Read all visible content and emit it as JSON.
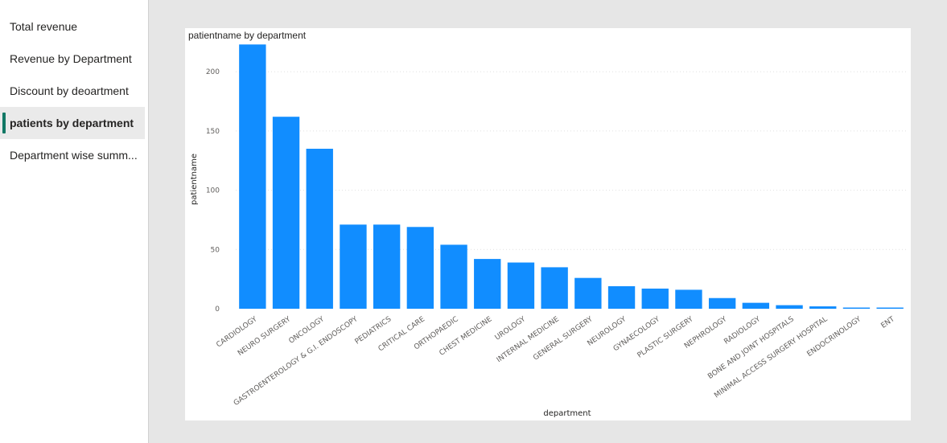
{
  "sidebar": {
    "pages": [
      {
        "label": "Total revenue",
        "active": false
      },
      {
        "label": "Revenue by Department",
        "active": false
      },
      {
        "label": "Discount by deoartment",
        "active": false
      },
      {
        "label": "patients by department",
        "active": true
      },
      {
        "label": "Department wise summ...",
        "active": false
      }
    ],
    "accent_color": "#117865"
  },
  "chart_data": {
    "type": "bar",
    "title": "patientname by department",
    "xlabel": "department",
    "ylabel": "patientname",
    "ylim": [
      0,
      230
    ],
    "yticks": [
      0,
      50,
      100,
      150,
      200
    ],
    "grid": true,
    "bar_color": "#118dff",
    "categories": [
      "CARDIOLOGY",
      "NEURO SURGERY",
      "ONCOLOGY",
      "GASTROENTEROLOGY & G.I. ENDOSCOPY",
      "PEDIATRICS",
      "CRITICAL CARE",
      "ORTHOPAEDIC",
      "CHEST MEDICINE",
      "UROLOGY",
      "INTERNAL MEDICINE",
      "GENERAL SURGERY",
      "NEUROLOGY",
      "GYNAECOLOGY",
      "PLASTIC SURGERY",
      "NEPHROLOGY",
      "RADIOLOGY",
      "BONE AND JOINT HOSPITALS",
      "MINIMAL ACCESS SURGERY HOSPITAL",
      "ENDOCRINOLOGY",
      "ENT"
    ],
    "values": [
      223,
      162,
      135,
      71,
      71,
      69,
      54,
      42,
      39,
      35,
      26,
      19,
      17,
      16,
      9,
      5,
      3,
      2,
      1,
      1
    ]
  }
}
